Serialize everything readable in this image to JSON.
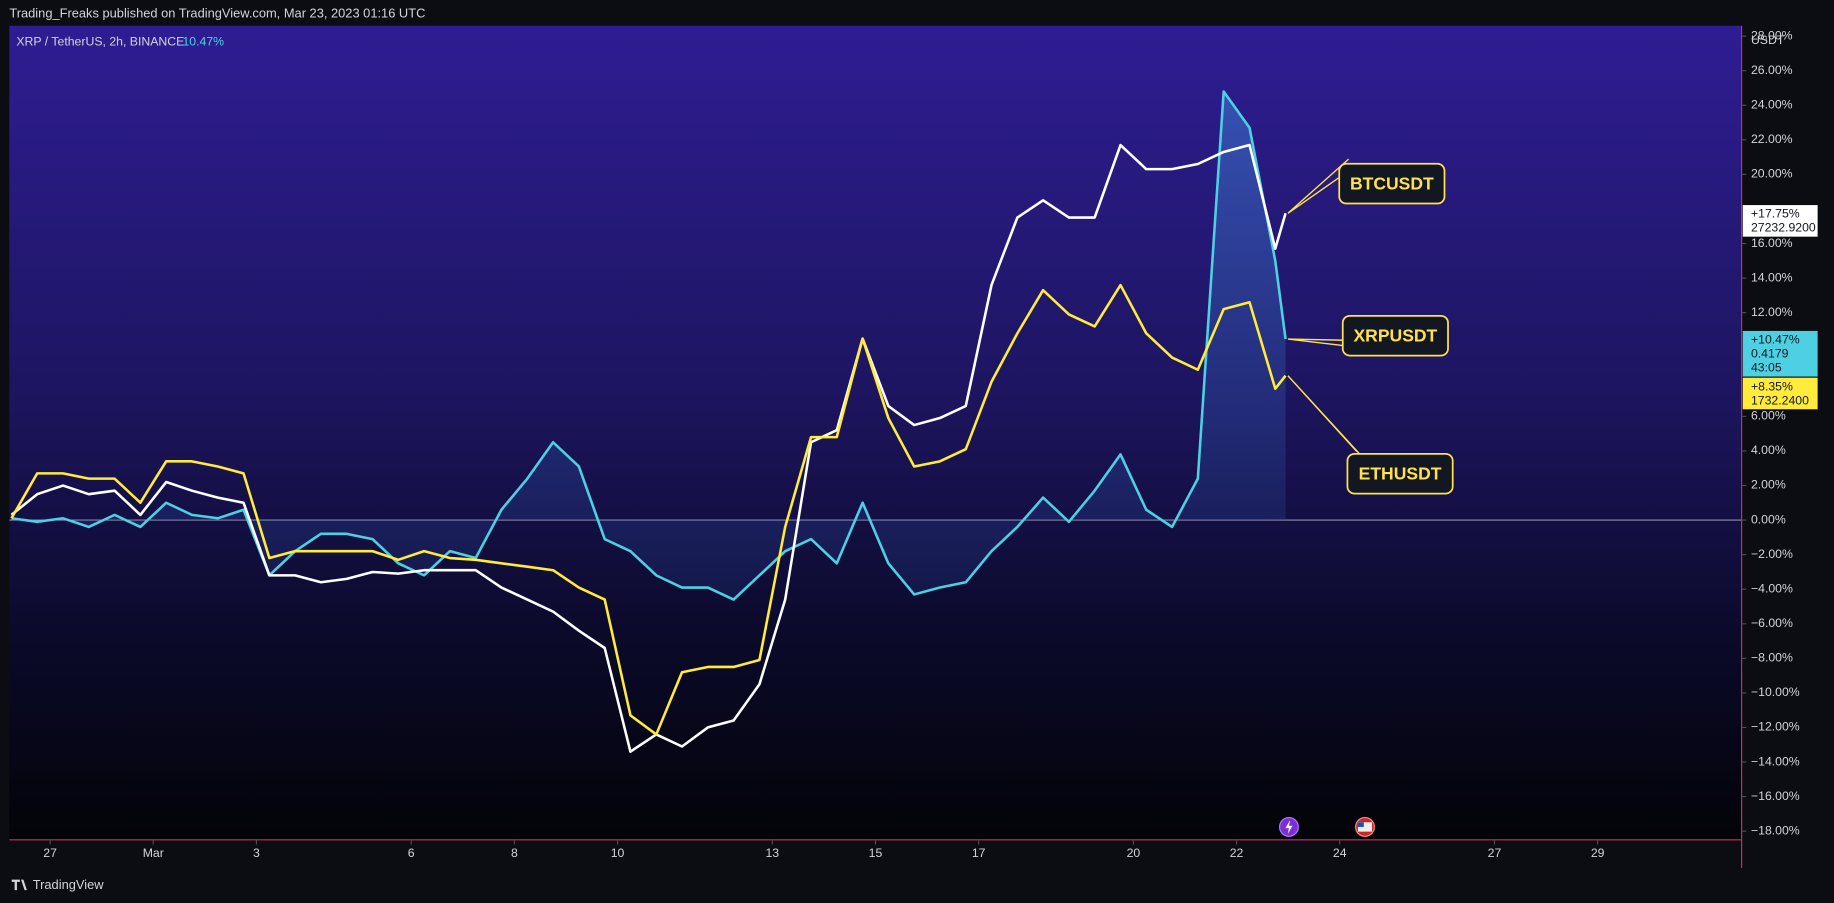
{
  "header": "Trading_Freaks published on TradingView.com, Mar 23, 2023 01:16 UTC",
  "symbol": "XRP / TetherUS, 2h, BINANCE",
  "symbol_change": "10.47%",
  "footer": "TradingView",
  "chart_data": {
    "type": "line",
    "y_unit": "USDT",
    "x": [
      -1.75,
      -1.25,
      -0.75,
      -0.25,
      0.25,
      0.75,
      1.25,
      1.75,
      2.25,
      2.75,
      3.25,
      3.75,
      4.25,
      4.75,
      5.25,
      5.75,
      6.25,
      6.75,
      7.25,
      7.75,
      8.25,
      8.75,
      9.25,
      9.75,
      10.25,
      10.75,
      11.25,
      11.75,
      12.25,
      12.75,
      13.25,
      13.75,
      14.25,
      14.75,
      15.25,
      15.75,
      16.25,
      16.75,
      17.25,
      17.75,
      18.25,
      18.75,
      19.25,
      19.75,
      20.25,
      20.75,
      21.25,
      21.75,
      22.25,
      22.75,
      22.95
    ],
    "xlim": [
      -1.79,
      31.79
    ],
    "xticks": [
      {
        "value": -1,
        "label": "27"
      },
      {
        "value": 1,
        "label": "Mar"
      },
      3,
      6,
      8,
      10,
      13,
      15,
      17,
      20,
      22,
      24,
      {
        "value": 27,
        "label": "27"
      },
      {
        "value": 29,
        "label": "29"
      }
    ],
    "ylim": [
      -18.5,
      28.6
    ],
    "yticks": [
      {
        "value": 28,
        "label": "28.00%"
      },
      {
        "value": 26,
        "label": "26.00%"
      },
      {
        "value": 24,
        "label": "24.00%"
      },
      {
        "value": 22,
        "label": "22.00%"
      },
      {
        "value": 20,
        "label": "20.00%"
      },
      {
        "value": 16,
        "label": "16.00%"
      },
      {
        "value": 14,
        "label": "14.00%"
      },
      {
        "value": 12,
        "label": "12.00%"
      },
      {
        "value": 6,
        "label": "6.00%"
      },
      {
        "value": 4,
        "label": "4.00%"
      },
      {
        "value": 2,
        "label": "2.00%"
      },
      {
        "value": 0,
        "label": "0.00%"
      },
      {
        "value": -2,
        "label": "−2.00%"
      },
      {
        "value": -4,
        "label": "−4.00%"
      },
      {
        "value": -6,
        "label": "−6.00%"
      },
      {
        "value": -8,
        "label": "−8.00%"
      },
      {
        "value": -10,
        "label": "−10.00%"
      },
      {
        "value": -12,
        "label": "−12.00%"
      },
      {
        "value": -14,
        "label": "−14.00%"
      },
      {
        "value": -16,
        "label": "−16.00%"
      },
      {
        "value": -18,
        "label": "−18.00%"
      }
    ],
    "series": [
      {
        "name": "BTCUSDT",
        "color": "#ffffff",
        "text_color": "#131722",
        "change_label": "+17.75%",
        "price_label": "27232.9200",
        "values": [
          0.3,
          1.5,
          2,
          1.5,
          1.7,
          0.3,
          2.2,
          1.7,
          1.3,
          1.0,
          -3.2,
          -3.2,
          -3.6,
          -3.4,
          -3,
          -3.1,
          -2.9,
          -2.9,
          -2.9,
          -3.9,
          -4.6,
          -5.3,
          -6.4,
          -7.4,
          -13.4,
          -12.4,
          -13.1,
          -12,
          -11.6,
          -9.5,
          -4.6,
          4.5,
          5.2,
          10.5,
          6.6,
          5.5,
          5.9,
          6.6,
          13.6,
          17.5,
          18.5,
          17.5,
          17.5,
          21.7,
          20.3,
          20.3,
          20.6,
          21.3,
          21.7,
          15.7,
          17.75
        ]
      },
      {
        "name": "XRPUSDT",
        "color": "#4dd0e1",
        "text_color": "#131722",
        "area": true,
        "change_label": "+10.47%",
        "price_label": "0.4179",
        "countdown": "43:05",
        "values": [
          0.1,
          -0.1,
          0.1,
          -0.4,
          0.3,
          -0.4,
          1,
          0.3,
          0.1,
          0.6,
          -3.2,
          -1.8,
          -0.8,
          -0.8,
          -1.1,
          -2.5,
          -3.2,
          -1.8,
          -2.2,
          0.6,
          2.4,
          4.5,
          3.1,
          -1.1,
          -1.8,
          -3.2,
          -3.9,
          -3.9,
          -4.6,
          -3.2,
          -1.8,
          -1.1,
          -2.5,
          1,
          -2.5,
          -4.3,
          -3.9,
          -3.6,
          -1.8,
          -0.4,
          1.3,
          -0.1,
          1.7,
          3.8,
          0.6,
          -0.4,
          2.4,
          24.8,
          22.7,
          15,
          10.47
        ]
      },
      {
        "name": "ETHUSDT",
        "color": "#ffeb3b",
        "text_color": "#131722",
        "change_label": "+8.35%",
        "price_label": "1732.2400",
        "values": [
          0.1,
          2.7,
          2.7,
          2.4,
          2.4,
          1,
          3.4,
          3.4,
          3.1,
          2.7,
          -2.2,
          -1.8,
          -1.8,
          -1.8,
          -1.8,
          -2.3,
          -1.8,
          -2.2,
          -2.3,
          -2.5,
          -2.7,
          -2.9,
          -3.9,
          -4.6,
          -11.3,
          -12.4,
          -8.8,
          -8.5,
          -8.5,
          -8.1,
          -0.4,
          4.8,
          4.8,
          10.5,
          5.9,
          3.1,
          3.4,
          4.1,
          8,
          10.8,
          13.3,
          11.9,
          11.2,
          13.6,
          10.8,
          9.4,
          8.7,
          12.2,
          12.6,
          7.6,
          8.35
        ]
      }
    ]
  }
}
